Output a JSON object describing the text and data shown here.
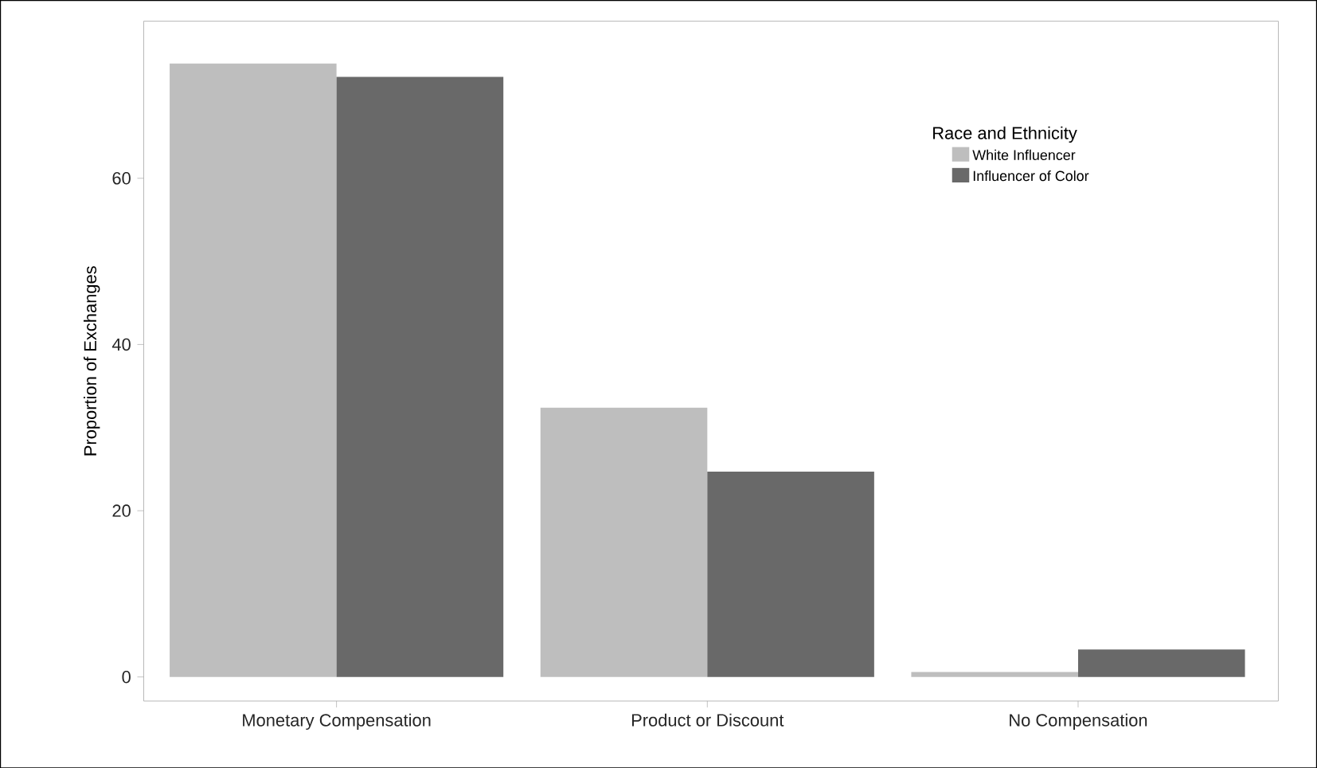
{
  "chart_data": {
    "type": "bar",
    "ylabel": "Proportion of Exchanges",
    "legend_title": "Race and Ethnicity",
    "categories": [
      "Monetary Compensation",
      "Product or Discount",
      "No Compensation"
    ],
    "series": [
      {
        "name": "White Influencer",
        "color": "#bebebe",
        "values": [
          73.8,
          32.4,
          0.6
        ]
      },
      {
        "name": "Influencer of Color",
        "color": "#696969",
        "values": [
          72.2,
          24.7,
          3.3
        ]
      }
    ],
    "ylim": [
      -2.9,
      78.9
    ],
    "yticks": [
      0,
      20,
      40,
      60
    ],
    "grid": false,
    "legend": "top right"
  }
}
